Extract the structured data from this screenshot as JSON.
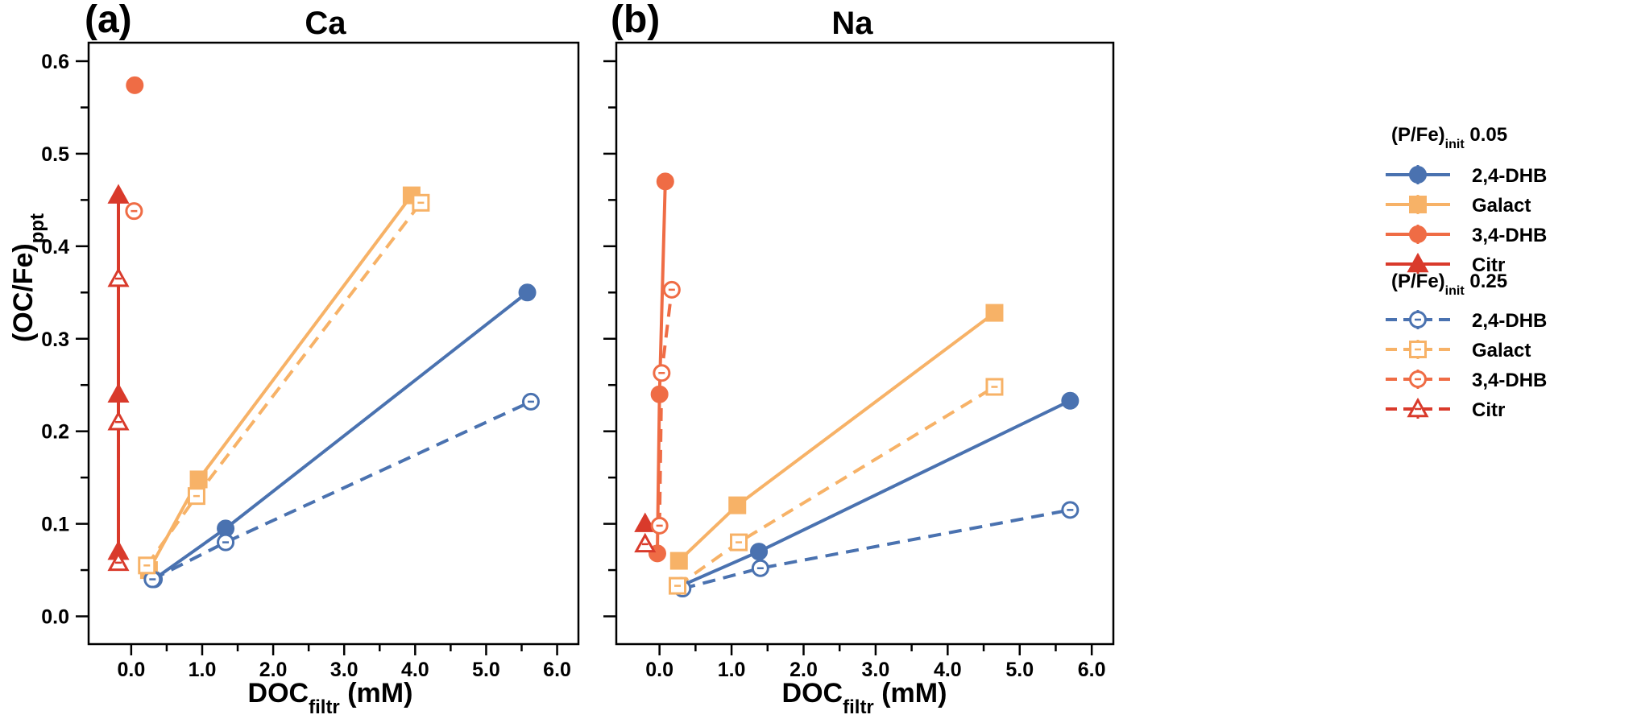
{
  "figure": {
    "ylabel": "(OC/Fe)",
    "ylabel_sub": "ppt",
    "xlabel": "DOC",
    "xlabel_sub": "filtr",
    "xlabel_unit": " (mM)"
  },
  "legend": {
    "groups": [
      {
        "header": "(P/Fe)",
        "header_sub": "init",
        "header_value": " 0.05",
        "items": [
          {
            "label": "2,4-DHB",
            "color": "#4a72b0",
            "marker": "circle",
            "filled": true,
            "dash": false
          },
          {
            "label": "Galact",
            "color": "#f7b267",
            "marker": "square",
            "filled": true,
            "dash": false
          },
          {
            "label": "3,4-DHB",
            "color": "#ef6c45",
            "marker": "circle",
            "filled": true,
            "dash": false
          },
          {
            "label": "Citr",
            "color": "#d93a2b",
            "marker": "triangle",
            "filled": true,
            "dash": false
          }
        ]
      },
      {
        "header": "(P/Fe)",
        "header_sub": "init",
        "header_value": " 0.25",
        "items": [
          {
            "label": "2,4-DHB",
            "color": "#4a72b0",
            "marker": "circle",
            "filled": false,
            "dash": true
          },
          {
            "label": "Galact",
            "color": "#f7b267",
            "marker": "square",
            "filled": false,
            "dash": true
          },
          {
            "label": "3,4-DHB",
            "color": "#ef6c45",
            "marker": "circle",
            "filled": false,
            "dash": true
          },
          {
            "label": "Citr",
            "color": "#d93a2b",
            "marker": "triangle",
            "filled": false,
            "dash": true
          }
        ]
      }
    ]
  },
  "chart_data": [
    {
      "type": "line",
      "panel": "(a)",
      "title": "Ca",
      "xlim": [
        -0.6,
        6.3
      ],
      "ylim": [
        -0.03,
        0.62
      ],
      "xticks": [
        "0.0",
        "1.0",
        "2.0",
        "3.0",
        "4.0",
        "5.0",
        "6.0"
      ],
      "yticks": [
        "0.0",
        "0.1",
        "0.2",
        "0.3",
        "0.4",
        "0.5",
        "0.6"
      ],
      "series": [
        {
          "name": "2,4-DHB (P/Fe)init 0.05",
          "color": "#4a72b0",
          "marker": "circle",
          "filled": true,
          "dash": false,
          "x": [
            0.32,
            1.33,
            5.58
          ],
          "y": [
            0.04,
            0.095,
            0.35
          ]
        },
        {
          "name": "Galact (P/Fe)init 0.05",
          "color": "#f7b267",
          "marker": "square",
          "filled": true,
          "dash": false,
          "x": [
            0.25,
            0.95,
            3.95
          ],
          "y": [
            0.05,
            0.148,
            0.455
          ]
        },
        {
          "name": "3,4-DHB (P/Fe)init 0.05",
          "color": "#ef6c45",
          "marker": "circle",
          "filled": true,
          "dash": false,
          "connect": false,
          "x": [
            0.05
          ],
          "y": [
            0.574
          ]
        },
        {
          "name": "Citr (P/Fe)init 0.05",
          "color": "#d93a2b",
          "marker": "triangle",
          "filled": true,
          "dash": false,
          "x": [
            -0.18,
            -0.18,
            -0.18
          ],
          "y": [
            0.07,
            0.24,
            0.455
          ]
        },
        {
          "name": "2,4-DHB (P/Fe)init 0.25",
          "color": "#4a72b0",
          "marker": "circle",
          "filled": false,
          "dash": true,
          "x": [
            0.3,
            1.33,
            5.63
          ],
          "y": [
            0.04,
            0.08,
            0.232
          ]
        },
        {
          "name": "Galact (P/Fe)init 0.25",
          "color": "#f7b267",
          "marker": "square",
          "filled": false,
          "dash": true,
          "x": [
            0.22,
            0.92,
            4.08
          ],
          "y": [
            0.055,
            0.13,
            0.447
          ]
        },
        {
          "name": "3,4-DHB (P/Fe)init 0.25",
          "color": "#ef6c45",
          "marker": "circle",
          "filled": false,
          "dash": true,
          "connect": false,
          "x": [
            0.04
          ],
          "y": [
            0.438
          ]
        },
        {
          "name": "Citr (P/Fe)init 0.25",
          "color": "#d93a2b",
          "marker": "triangle",
          "filled": false,
          "dash": true,
          "x": [
            -0.18,
            -0.18,
            -0.18
          ],
          "y": [
            0.058,
            0.21,
            0.365
          ]
        }
      ]
    },
    {
      "type": "line",
      "panel": "(b)",
      "title": "Na",
      "xlim": [
        -0.6,
        6.3
      ],
      "ylim": [
        -0.03,
        0.62
      ],
      "xticks": [
        "0.0",
        "1.0",
        "2.0",
        "3.0",
        "4.0",
        "5.0",
        "6.0"
      ],
      "yticks": [
        "0.0",
        "0.1",
        "0.2",
        "0.3",
        "0.4",
        "0.5",
        "0.6"
      ],
      "series": [
        {
          "name": "2,4-DHB (P/Fe)init 0.05",
          "color": "#4a72b0",
          "marker": "circle",
          "filled": true,
          "dash": false,
          "x": [
            0.3,
            1.38,
            5.7
          ],
          "y": [
            0.033,
            0.07,
            0.233
          ]
        },
        {
          "name": "Galact (P/Fe)init 0.05",
          "color": "#f7b267",
          "marker": "square",
          "filled": true,
          "dash": false,
          "x": [
            0.27,
            1.08,
            4.65
          ],
          "y": [
            0.06,
            0.12,
            0.328
          ]
        },
        {
          "name": "3,4-DHB (P/Fe)init 0.05",
          "color": "#ef6c45",
          "marker": "circle",
          "filled": true,
          "dash": false,
          "x": [
            -0.03,
            0.0,
            0.08
          ],
          "y": [
            0.068,
            0.24,
            0.47
          ]
        },
        {
          "name": "Citr (P/Fe)init 0.05",
          "color": "#d93a2b",
          "marker": "triangle",
          "filled": true,
          "dash": false,
          "x": [
            -0.2
          ],
          "y": [
            0.1
          ]
        },
        {
          "name": "2,4-DHB (P/Fe)init 0.25",
          "color": "#4a72b0",
          "marker": "circle",
          "filled": false,
          "dash": true,
          "x": [
            0.32,
            1.4,
            5.7
          ],
          "y": [
            0.03,
            0.052,
            0.115
          ]
        },
        {
          "name": "Galact (P/Fe)init 0.25",
          "color": "#f7b267",
          "marker": "square",
          "filled": false,
          "dash": true,
          "x": [
            0.25,
            1.1,
            4.65
          ],
          "y": [
            0.033,
            0.08,
            0.248
          ]
        },
        {
          "name": "3,4-DHB (P/Fe)init 0.25",
          "color": "#ef6c45",
          "marker": "circle",
          "filled": false,
          "dash": true,
          "x": [
            0.0,
            0.03,
            0.17
          ],
          "y": [
            0.098,
            0.263,
            0.353
          ]
        },
        {
          "name": "Citr (P/Fe)init 0.25",
          "color": "#d93a2b",
          "marker": "triangle",
          "filled": false,
          "dash": true,
          "x": [
            -0.2
          ],
          "y": [
            0.078
          ]
        }
      ]
    }
  ]
}
